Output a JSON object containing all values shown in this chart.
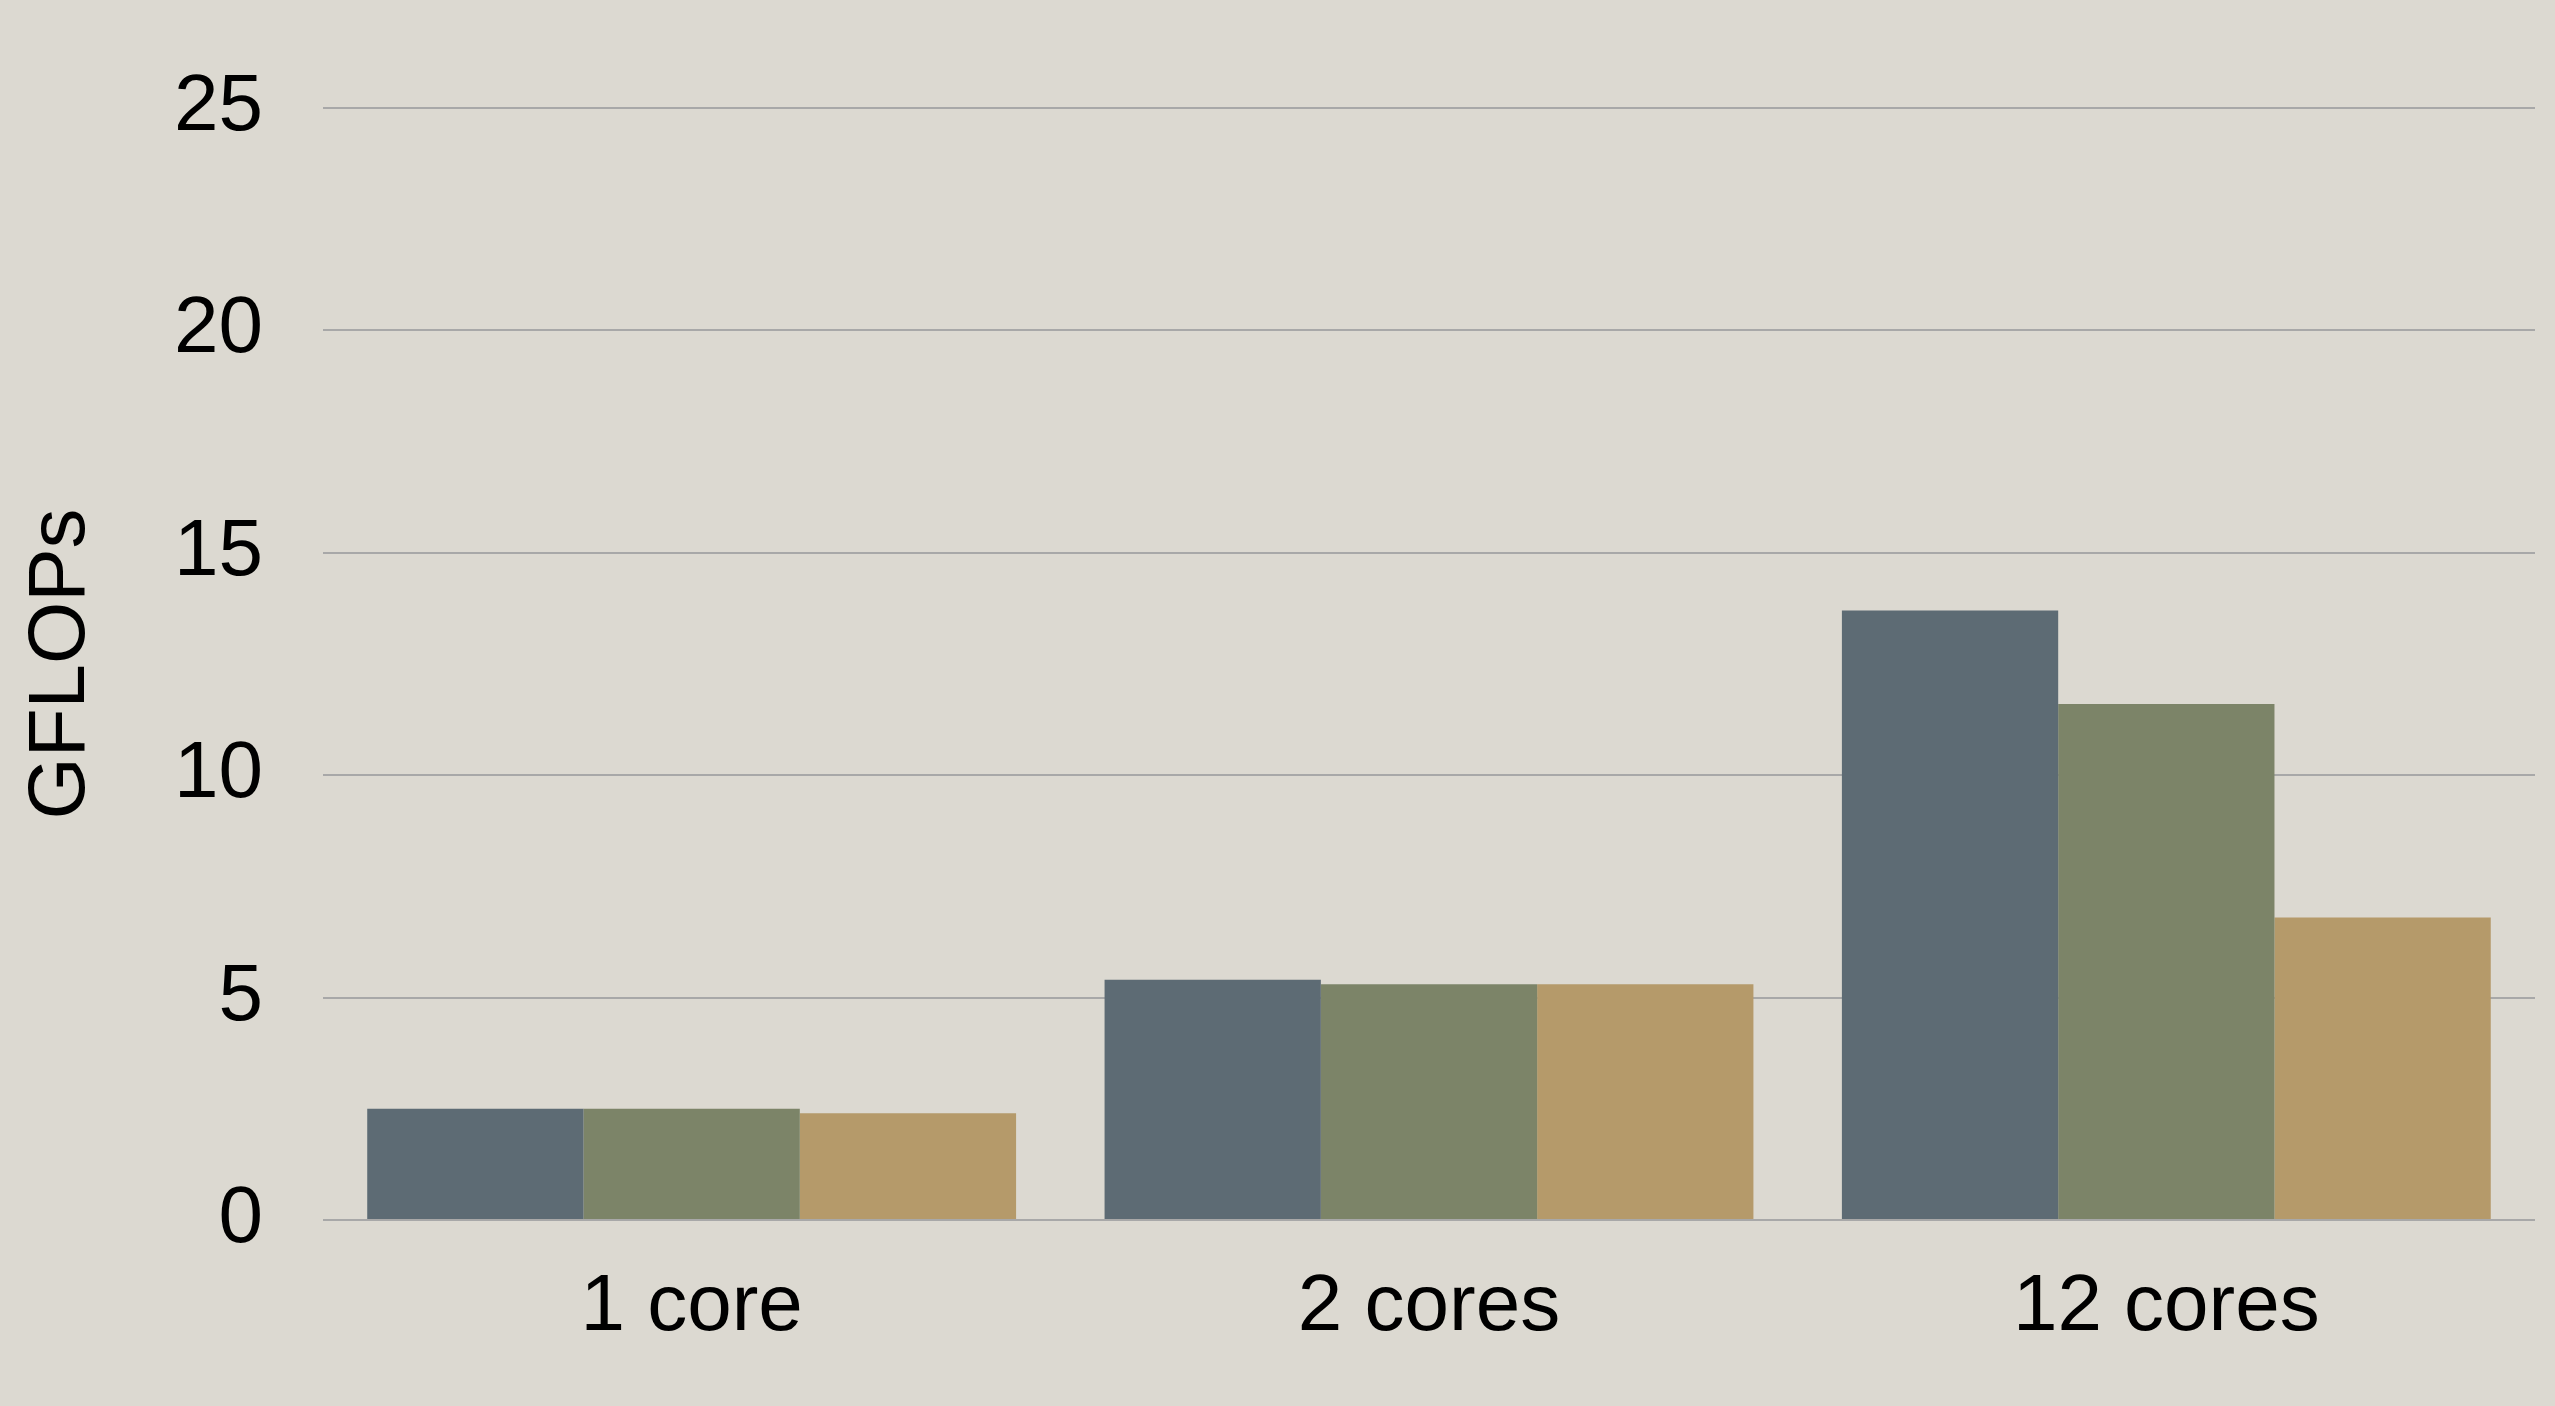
{
  "chart_data": {
    "type": "bar",
    "ylabel": "GFLOPs",
    "categories": [
      "1 core",
      "2 cores",
      "12 cores"
    ],
    "series": [
      {
        "color": "#5d6b74",
        "values": [
          2.5,
          5.4,
          13.7
        ]
      },
      {
        "color": "#7c8468",
        "values": [
          2.5,
          5.3,
          11.6
        ]
      },
      {
        "color": "#b59a6a",
        "values": [
          2.4,
          5.3,
          6.8
        ]
      }
    ],
    "ylim": [
      0,
      25
    ],
    "yticks": [
      0,
      5,
      10,
      15,
      20,
      25
    ],
    "grid": "y",
    "legend": false
  }
}
